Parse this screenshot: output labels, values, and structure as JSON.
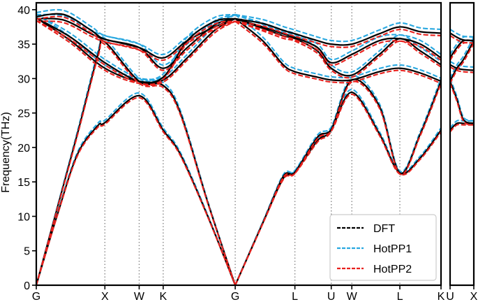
{
  "chart_data": {
    "type": "line",
    "title": "",
    "ylabel": "Frequency(THz)",
    "xlabel": "",
    "ylim": [
      0,
      41
    ],
    "yticks": [
      0,
      5,
      10,
      15,
      20,
      25,
      30,
      35,
      40
    ],
    "grid": "vertical dotted lines at high-symmetry points",
    "legend_position": "bottom-right",
    "segments": [
      {
        "id": "main",
        "k_start": "G",
        "k_end": "K"
      },
      {
        "id": "right",
        "k_start": "U",
        "k_end": "X"
      }
    ],
    "kpoints": [
      {
        "label": "G",
        "x": 0.0
      },
      {
        "label": "X",
        "x": 1.0
      },
      {
        "label": "W",
        "x": 1.5
      },
      {
        "label": "K",
        "x": 1.85
      },
      {
        "label": "G",
        "x": 2.9
      },
      {
        "label": "L",
        "x": 3.77
      },
      {
        "label": "U",
        "x": 4.3
      },
      {
        "label": "W",
        "x": 4.6
      },
      {
        "label": "L",
        "x": 5.3
      },
      {
        "label": "K",
        "x": 5.9
      }
    ],
    "right_kpoints": [
      {
        "label": "U",
        "x": 0.0
      },
      {
        "label": "X",
        "x": 0.35
      }
    ],
    "series": [
      {
        "name": "DFT",
        "color": "#000000",
        "style": "solid-dashed",
        "offset": 0.0
      },
      {
        "name": "HotPP1",
        "color": "#29a8e0",
        "style": "dashed",
        "offset": 0.6
      },
      {
        "name": "HotPP2",
        "color": "#e8211d",
        "style": "dashed",
        "offset": -0.4
      }
    ],
    "branches": [
      {
        "segment": "main",
        "x": [
          0,
          0.3,
          0.6,
          0.9,
          1.0,
          1.5,
          1.85,
          2.1,
          2.5,
          2.9
        ],
        "y": [
          0,
          10,
          19,
          23.2,
          23.6,
          27.5,
          22.5,
          19,
          10,
          0
        ]
      },
      {
        "segment": "main",
        "x": [
          0,
          0.3,
          0.6,
          0.9,
          1.0,
          1.5,
          1.85,
          2.1,
          2.5,
          2.9
        ],
        "y": [
          0,
          11,
          22,
          33.5,
          35.3,
          29.6,
          29.0,
          25,
          12,
          0
        ]
      },
      {
        "segment": "main",
        "x": [
          0,
          0.4,
          0.8,
          1.0,
          1.5,
          1.85,
          2.2,
          2.6,
          2.9
        ],
        "y": [
          38.7,
          38.5,
          36.5,
          35.7,
          34.5,
          33.0,
          35.5,
          37.5,
          38.7
        ]
      },
      {
        "segment": "main",
        "x": [
          0,
          0.4,
          0.8,
          1.0,
          1.5,
          1.85,
          2.2,
          2.6,
          2.9
        ],
        "y": [
          39.0,
          39.3,
          37.0,
          35.7,
          34.5,
          31.5,
          34.5,
          37.8,
          38.7
        ]
      },
      {
        "segment": "main",
        "x": [
          0,
          0.5,
          1.0,
          1.5,
          1.85,
          2.2,
          2.6,
          2.9
        ],
        "y": [
          38.8,
          36.0,
          32.3,
          29.6,
          29.8,
          33,
          37,
          38.7
        ]
      },
      {
        "segment": "main",
        "x": [
          0,
          0.5,
          1.0,
          1.5,
          1.85,
          2.2,
          2.6,
          2.9
        ],
        "y": [
          38.8,
          35.5,
          31.5,
          29.6,
          30.2,
          35.5,
          38.3,
          38.7
        ]
      },
      {
        "segment": "main",
        "x": [
          2.9,
          3.3,
          3.6,
          3.77,
          4.1,
          4.3,
          4.6,
          5.0,
          5.3,
          5.6,
          5.9
        ],
        "y": [
          0,
          9,
          15.5,
          16.4,
          21.5,
          22.6,
          28.0,
          22,
          16.3,
          18.5,
          22.5
        ]
      },
      {
        "segment": "main",
        "x": [
          2.9,
          3.3,
          3.6,
          3.77,
          4.1,
          4.3,
          4.6,
          5.0,
          5.3,
          5.6,
          5.9
        ],
        "y": [
          0,
          9,
          15.8,
          16.4,
          21.0,
          22.6,
          29.8,
          26,
          16.3,
          22,
          29.6
        ]
      },
      {
        "segment": "main",
        "x": [
          2.9,
          3.3,
          3.6,
          3.77,
          4.1,
          4.3,
          4.6,
          5.0,
          5.3,
          5.6,
          5.9
        ],
        "y": [
          38.7,
          35.5,
          32.0,
          31.0,
          30.2,
          29.8,
          29.8,
          31.0,
          31.5,
          30.8,
          29.6
        ]
      },
      {
        "segment": "main",
        "x": [
          2.9,
          3.3,
          3.6,
          3.77,
          4.1,
          4.3,
          4.6,
          5.0,
          5.3,
          5.6,
          5.9
        ],
        "y": [
          38.7,
          37.5,
          36.5,
          36.0,
          34.5,
          32.3,
          33.5,
          35.5,
          35.8,
          35.0,
          33.0
        ]
      },
      {
        "segment": "main",
        "x": [
          2.9,
          3.3,
          3.6,
          3.77,
          4.1,
          4.3,
          4.6,
          5.0,
          5.3,
          5.6,
          5.9
        ],
        "y": [
          38.7,
          38.0,
          37.0,
          36.5,
          35.5,
          35.0,
          35.0,
          36.5,
          37.5,
          36.8,
          36.6
        ]
      },
      {
        "segment": "main",
        "x": [
          2.9,
          3.3,
          3.6,
          3.77,
          4.1,
          4.3,
          4.6,
          5.0,
          5.3,
          5.6,
          5.9
        ],
        "y": [
          38.7,
          37.3,
          36.2,
          35.8,
          34.0,
          31.5,
          30.5,
          33.5,
          35.8,
          34.0,
          32.0
        ]
      },
      {
        "segment": "right",
        "x": [
          0,
          0.1,
          0.2,
          0.35
        ],
        "y": [
          29.6,
          31.5,
          32.8,
          35.5
        ]
      },
      {
        "segment": "right",
        "x": [
          0,
          0.1,
          0.2,
          0.35
        ],
        "y": [
          32.0,
          31.5,
          31.3,
          31.2
        ]
      },
      {
        "segment": "right",
        "x": [
          0,
          0.1,
          0.2,
          0.35
        ],
        "y": [
          36.6,
          36.0,
          35.6,
          35.5
        ]
      },
      {
        "segment": "right",
        "x": [
          0,
          0.1,
          0.2,
          0.35
        ],
        "y": [
          29.6,
          27.0,
          24.0,
          23.5
        ]
      },
      {
        "segment": "right",
        "x": [
          0,
          0.1,
          0.2,
          0.35
        ],
        "y": [
          22.5,
          23.5,
          23.5,
          23.5
        ]
      },
      {
        "segment": "right",
        "x": [
          0,
          0.1,
          0.2,
          0.35
        ],
        "y": [
          33.0,
          34.5,
          35.5,
          35.5
        ]
      }
    ]
  }
}
